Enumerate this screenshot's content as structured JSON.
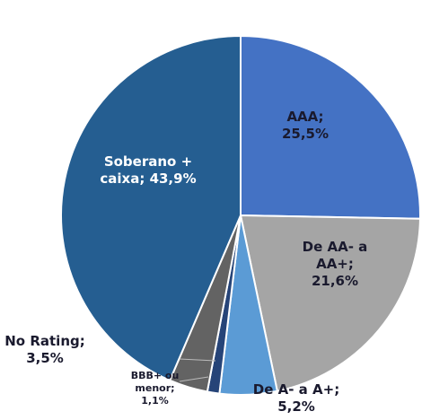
{
  "chart_data": {
    "type": "pie",
    "categories": [
      "AAA;",
      "De AA- a AA+;",
      "De A- a A+;",
      "BBB+ ou menor;",
      "No Rating;",
      "Soberano + caixa;"
    ],
    "values": [
      25.5,
      21.6,
      5.2,
      1.1,
      3.5,
      43.9
    ],
    "value_labels": [
      "25,5%",
      "21,6%",
      "5,2%",
      "1,1%",
      "3,5%",
      "43,9%"
    ],
    "colors": [
      "#4472c4",
      "#a5a5a5",
      "#5b9bd5",
      "#264478",
      "#636363",
      "#255e91"
    ]
  }
}
